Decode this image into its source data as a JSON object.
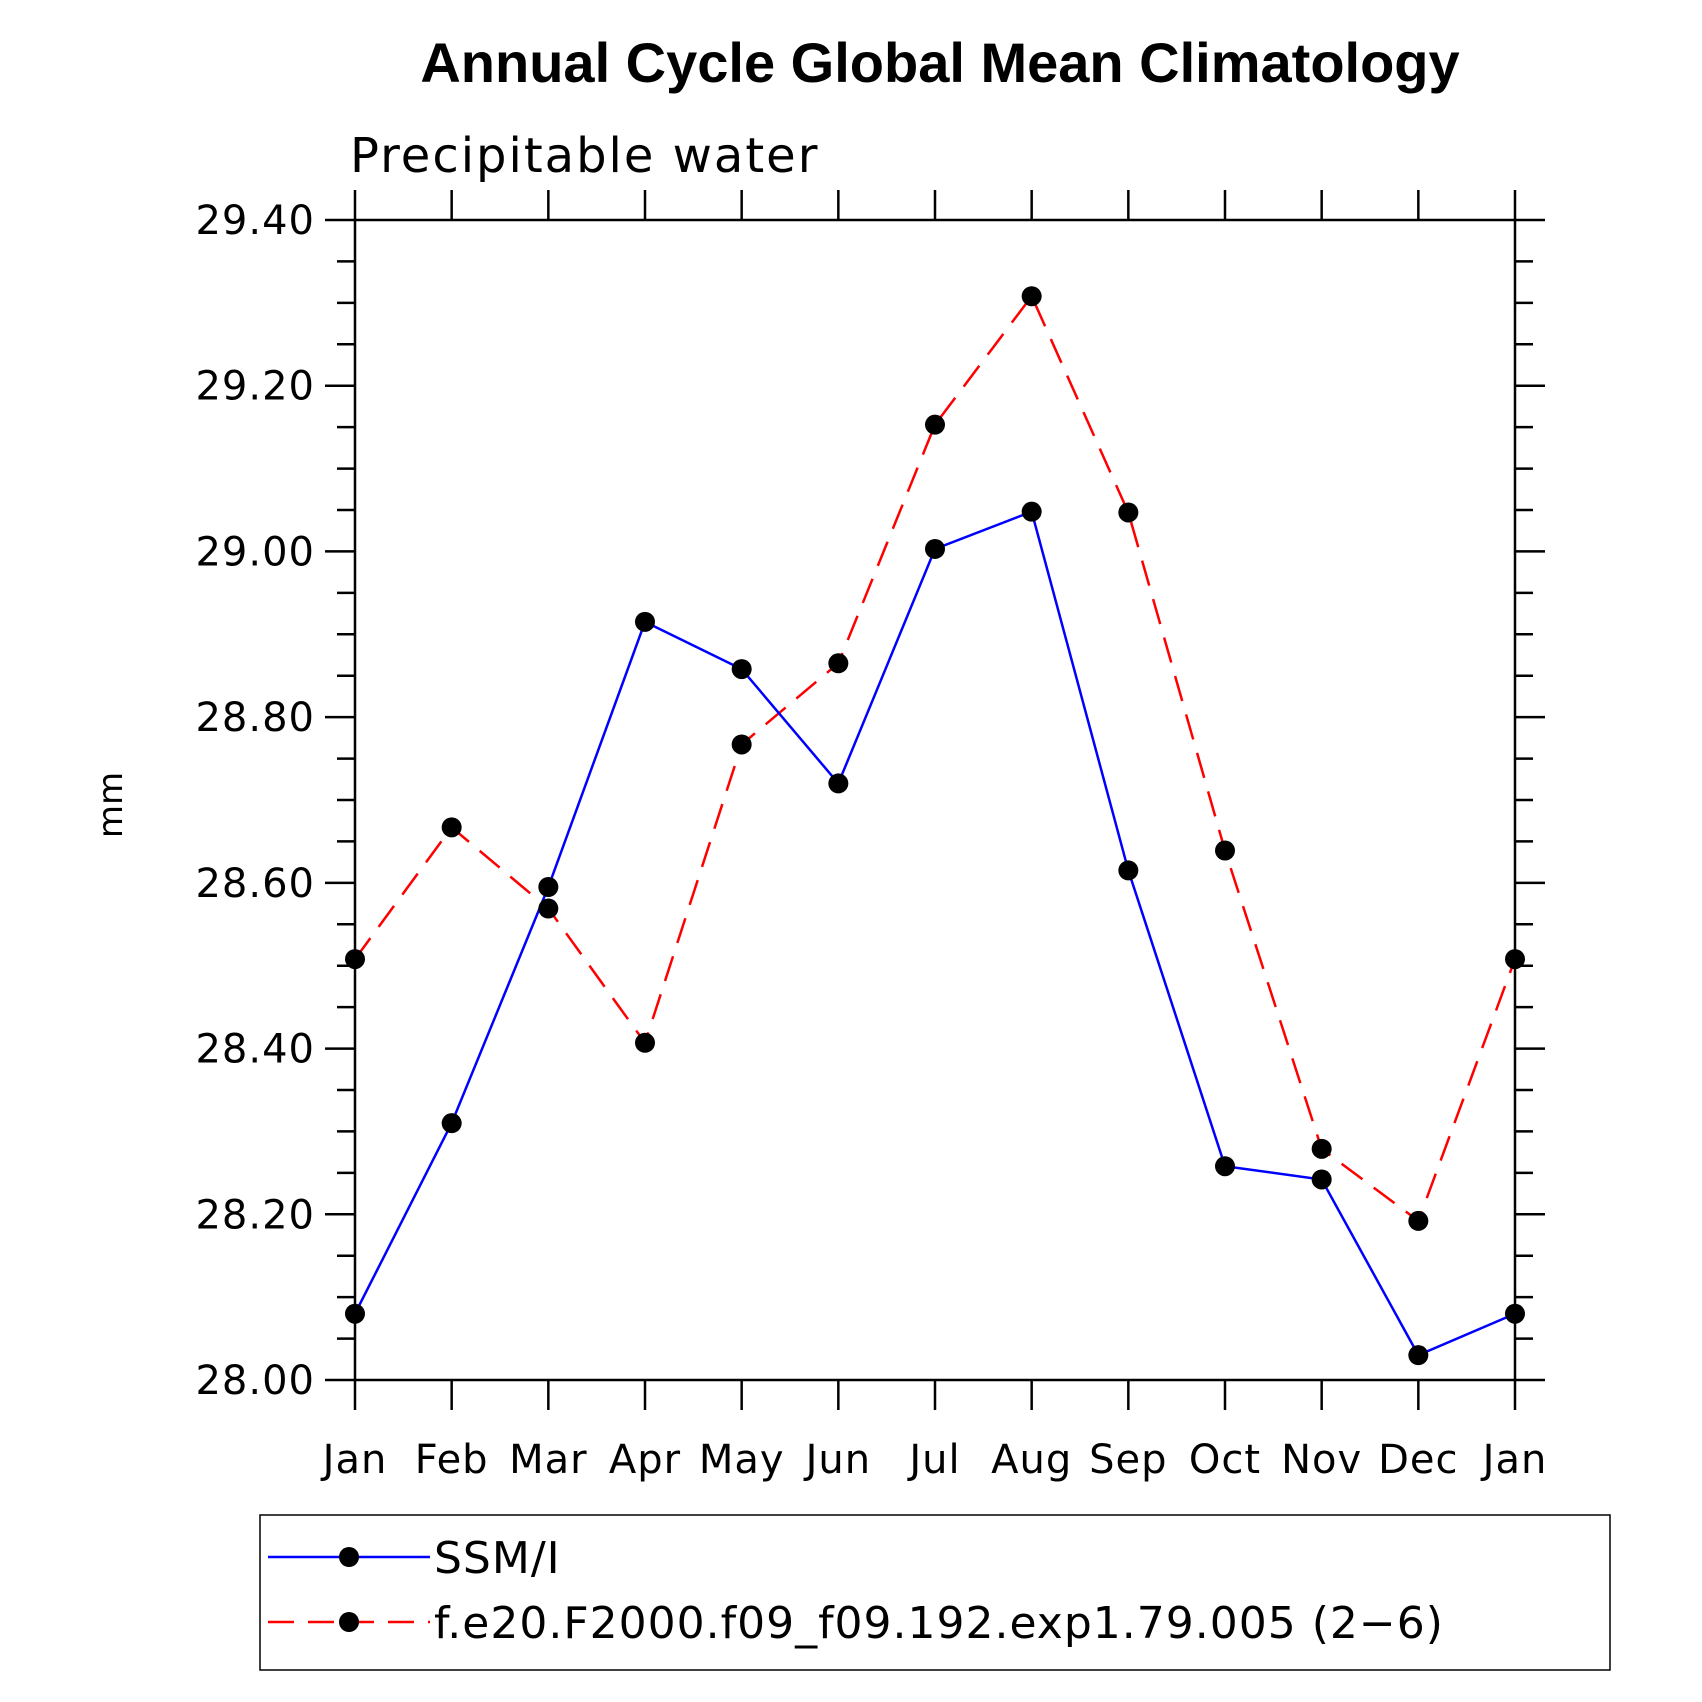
{
  "chart_data": {
    "type": "line",
    "title": "Annual Cycle Global Mean Climatology",
    "subtitle": "Precipitable water",
    "xlabel": "",
    "ylabel": "mm",
    "categories": [
      "Jan",
      "Feb",
      "Mar",
      "Apr",
      "May",
      "Jun",
      "Jul",
      "Aug",
      "Sep",
      "Oct",
      "Nov",
      "Dec",
      "Jan"
    ],
    "ylim": [
      28.0,
      29.4
    ],
    "yticks": [
      "28.00",
      "28.20",
      "28.40",
      "28.60",
      "28.80",
      "29.00",
      "29.20",
      "29.40"
    ],
    "legend_position": "bottom",
    "series": [
      {
        "name": "SSM/I",
        "color": "#0000ff",
        "dash": "solid",
        "marker": "filled-circle",
        "values": [
          28.08,
          28.31,
          28.595,
          28.915,
          28.858,
          28.72,
          29.003,
          29.048,
          28.615,
          28.258,
          28.242,
          28.03,
          28.08
        ]
      },
      {
        "name": "f.e20.F2000.f09_f09.192.exp1.79.005 (2−6)",
        "color": "#ff0000",
        "dash": "dashed",
        "marker": "filled-circle",
        "values": [
          28.508,
          28.667,
          28.569,
          28.407,
          28.767,
          28.865,
          29.153,
          29.308,
          29.047,
          28.639,
          28.279,
          28.192,
          28.508
        ]
      }
    ]
  }
}
